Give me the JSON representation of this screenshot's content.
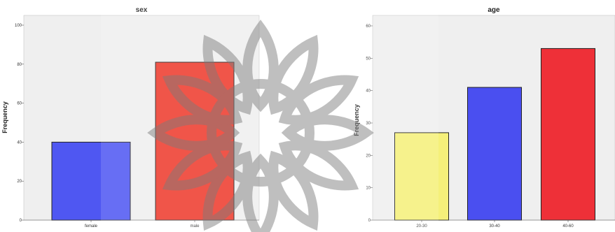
{
  "chart_data": [
    {
      "type": "bar",
      "title": "sex",
      "ylabel": "Frequency",
      "xlabel": "",
      "categories": [
        "female",
        "male"
      ],
      "values": [
        40,
        81
      ],
      "colors": [
        "#4f57f2",
        "#ee3a2c"
      ],
      "ylim": [
        0,
        100
      ],
      "yticks": [
        0,
        20,
        40,
        60,
        80,
        100
      ],
      "grid": false
    },
    {
      "type": "bar",
      "title": "age",
      "ylabel": "Frequency",
      "xlabel": "",
      "categories": [
        "20-30",
        "30-40",
        "40-60"
      ],
      "values": [
        27,
        41,
        53
      ],
      "colors": [
        "#f5f07a",
        "#4a4ff0",
        "#ee3038"
      ],
      "ylim": [
        0,
        60
      ],
      "yticks": [
        0,
        10,
        20,
        30,
        40,
        50,
        60
      ],
      "grid": false
    }
  ],
  "style": {
    "plot_background": "#efefef",
    "page_background": "#ffffff",
    "bar_outline": "#222222",
    "watermark_color": "#8c8c8c"
  }
}
